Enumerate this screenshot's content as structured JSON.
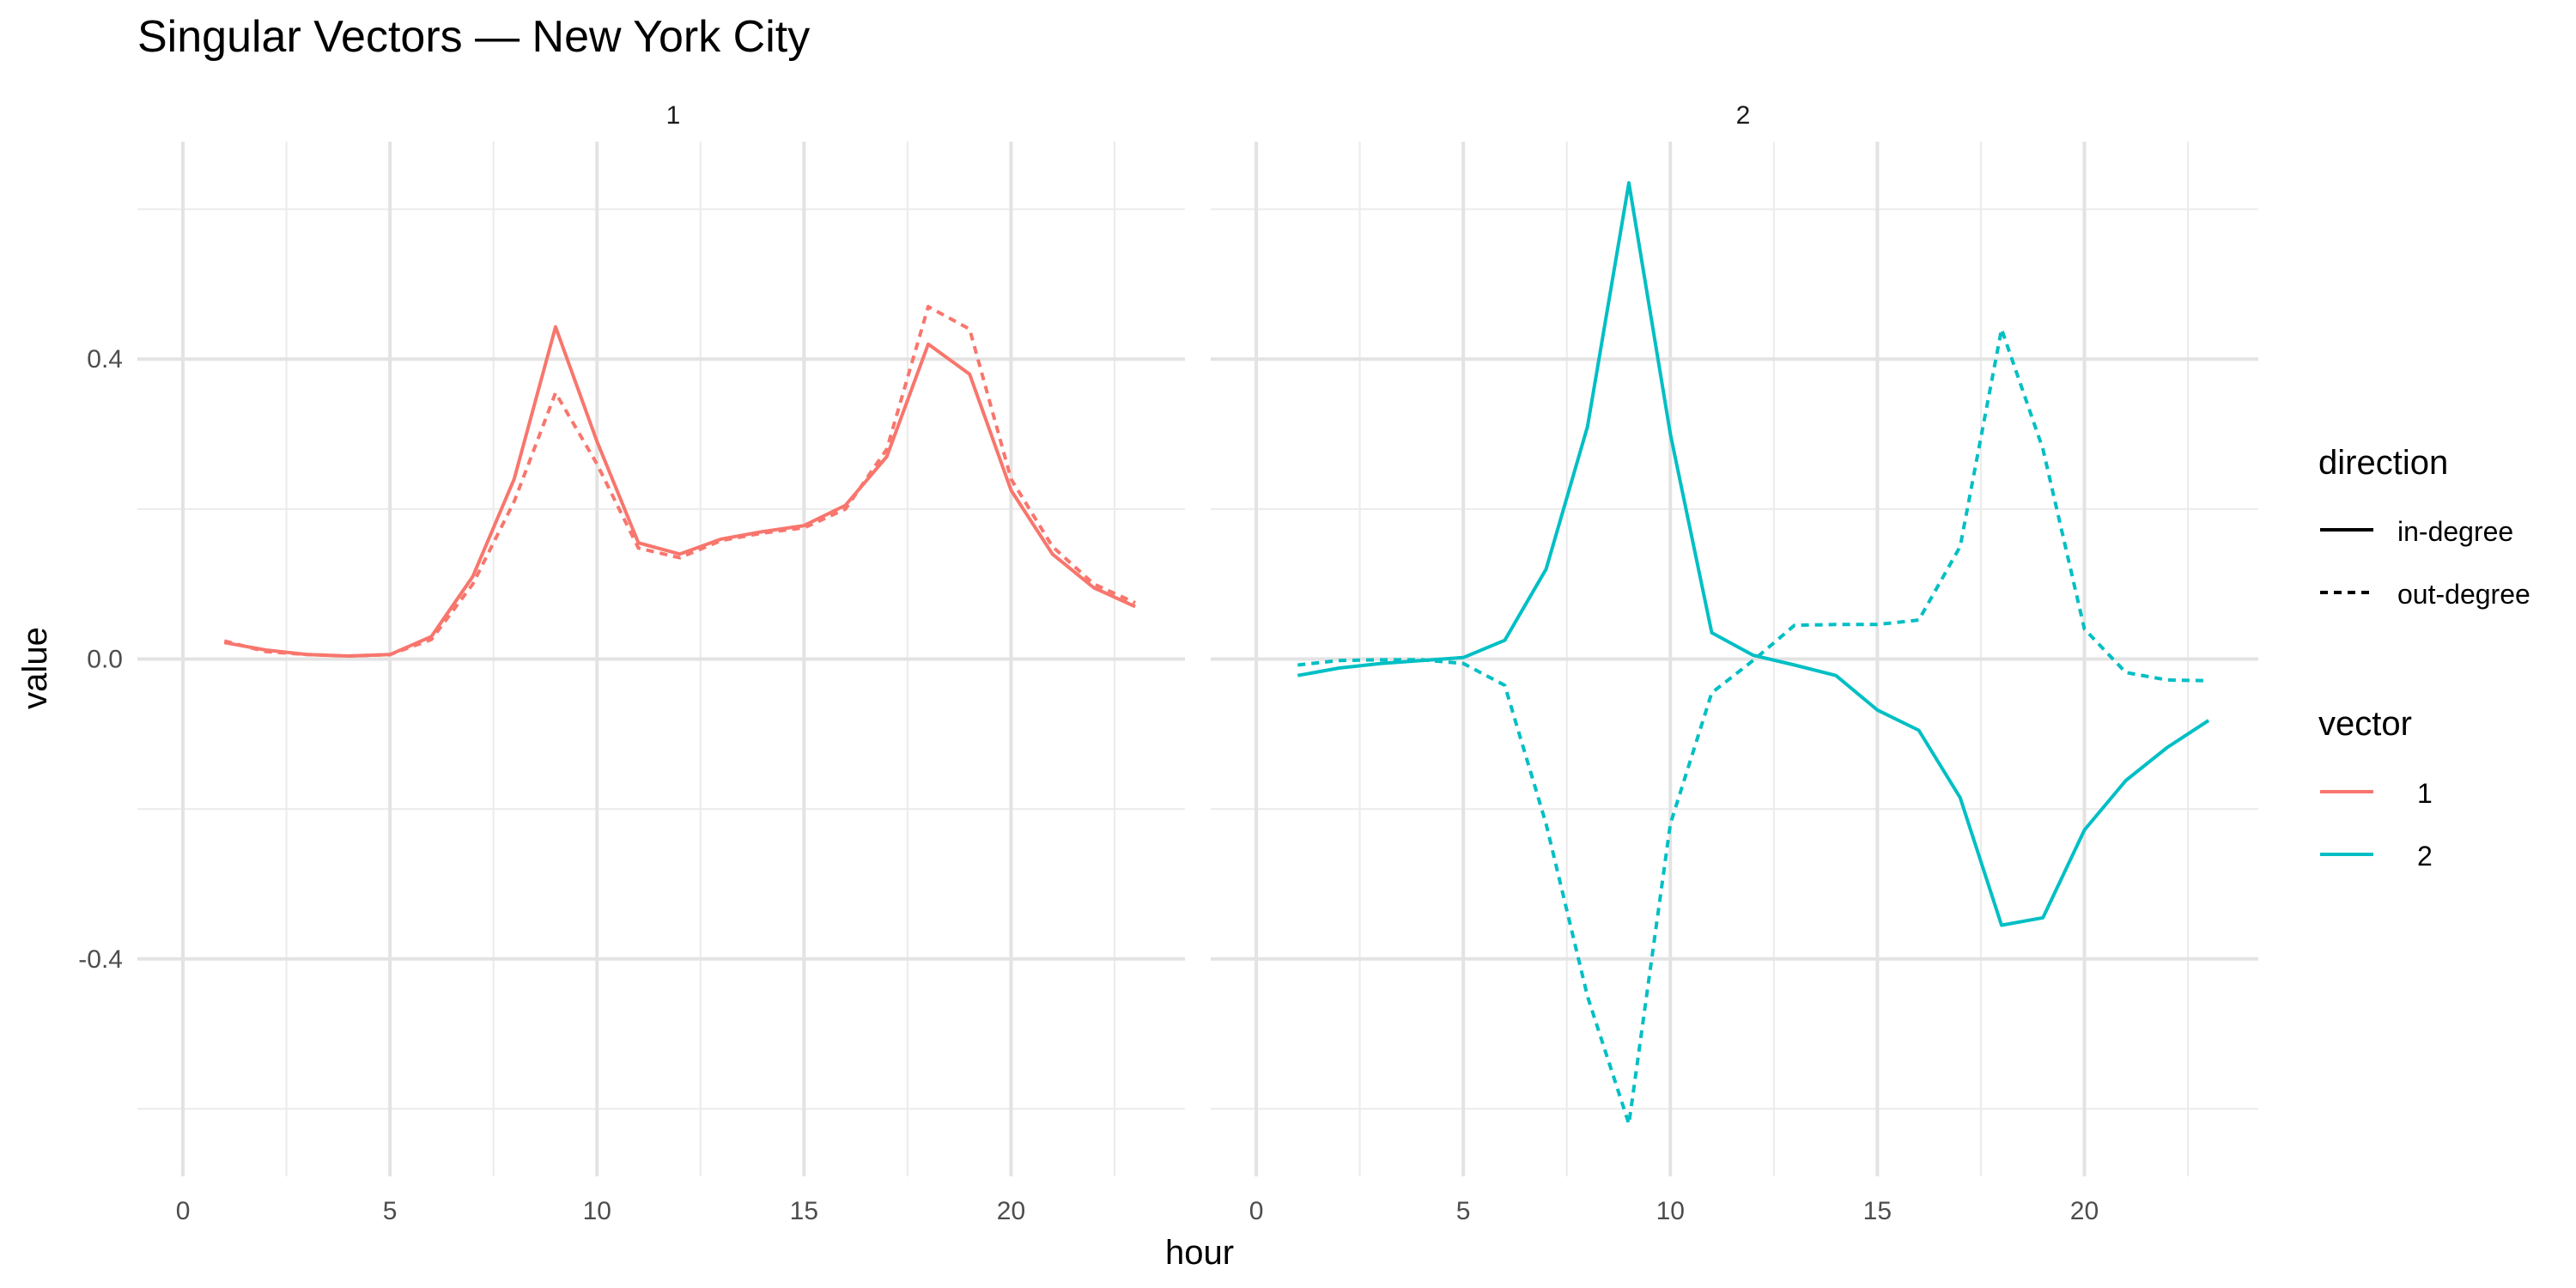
{
  "chart_data": {
    "type": "line",
    "title": "Singular Vectors — New York City",
    "xlabel": "hour",
    "ylabel": "value",
    "xlim": [
      -1.1,
      24.2
    ],
    "ylim": [
      -0.69,
      0.69
    ],
    "x_ticks": [
      0,
      5,
      10,
      15,
      20
    ],
    "x_tick_labels": [
      "0",
      "5",
      "10",
      "15",
      "20"
    ],
    "y_ticks": [
      -0.4,
      0.0,
      0.4
    ],
    "y_tick_labels": [
      "-0.4",
      "0.0",
      "0.4"
    ],
    "grid": true,
    "facets": [
      "1",
      "2"
    ],
    "x": [
      1,
      2,
      3,
      4,
      5,
      6,
      7,
      8,
      9,
      10,
      11,
      12,
      13,
      14,
      15,
      16,
      17,
      18,
      19,
      20,
      21,
      22,
      23
    ],
    "series": [
      {
        "facet": "1",
        "vector": "1",
        "direction": "in-degree",
        "values": [
          0.022,
          0.012,
          0.006,
          0.004,
          0.006,
          0.03,
          0.11,
          0.24,
          0.443,
          0.29,
          0.155,
          0.14,
          0.16,
          0.17,
          0.178,
          0.205,
          0.27,
          0.42,
          0.38,
          0.225,
          0.14,
          0.095,
          0.07
        ]
      },
      {
        "facet": "1",
        "vector": "1",
        "direction": "out-degree",
        "values": [
          0.024,
          0.01,
          0.006,
          0.004,
          0.006,
          0.026,
          0.1,
          0.21,
          0.355,
          0.26,
          0.148,
          0.135,
          0.158,
          0.168,
          0.175,
          0.2,
          0.28,
          0.47,
          0.44,
          0.24,
          0.15,
          0.1,
          0.075
        ]
      },
      {
        "facet": "2",
        "vector": "2",
        "direction": "in-degree",
        "values": [
          -0.022,
          -0.012,
          -0.006,
          -0.002,
          0.002,
          0.025,
          0.12,
          0.31,
          0.635,
          0.3,
          0.035,
          0.005,
          -0.008,
          -0.022,
          -0.068,
          -0.095,
          -0.185,
          -0.355,
          -0.345,
          -0.228,
          -0.162,
          -0.118,
          -0.082
        ]
      },
      {
        "facet": "2",
        "vector": "2",
        "direction": "out-degree",
        "values": [
          -0.008,
          -0.002,
          -0.001,
          -0.001,
          -0.006,
          -0.035,
          -0.22,
          -0.45,
          -0.62,
          -0.22,
          -0.045,
          -0.002,
          0.045,
          0.046,
          0.046,
          0.052,
          0.15,
          0.44,
          0.28,
          0.04,
          -0.018,
          -0.028,
          -0.029
        ]
      }
    ],
    "legend": {
      "placement": "right",
      "direction": {
        "title": "direction",
        "items": [
          "in-degree",
          "out-degree"
        ]
      },
      "vector": {
        "title": "vector",
        "items": [
          "1",
          "2"
        ]
      }
    },
    "colors": {
      "1": "#F8766D",
      "2": "#00BFC4"
    },
    "line_styles": {
      "in-degree": "solid",
      "out-degree": "dashed"
    }
  }
}
